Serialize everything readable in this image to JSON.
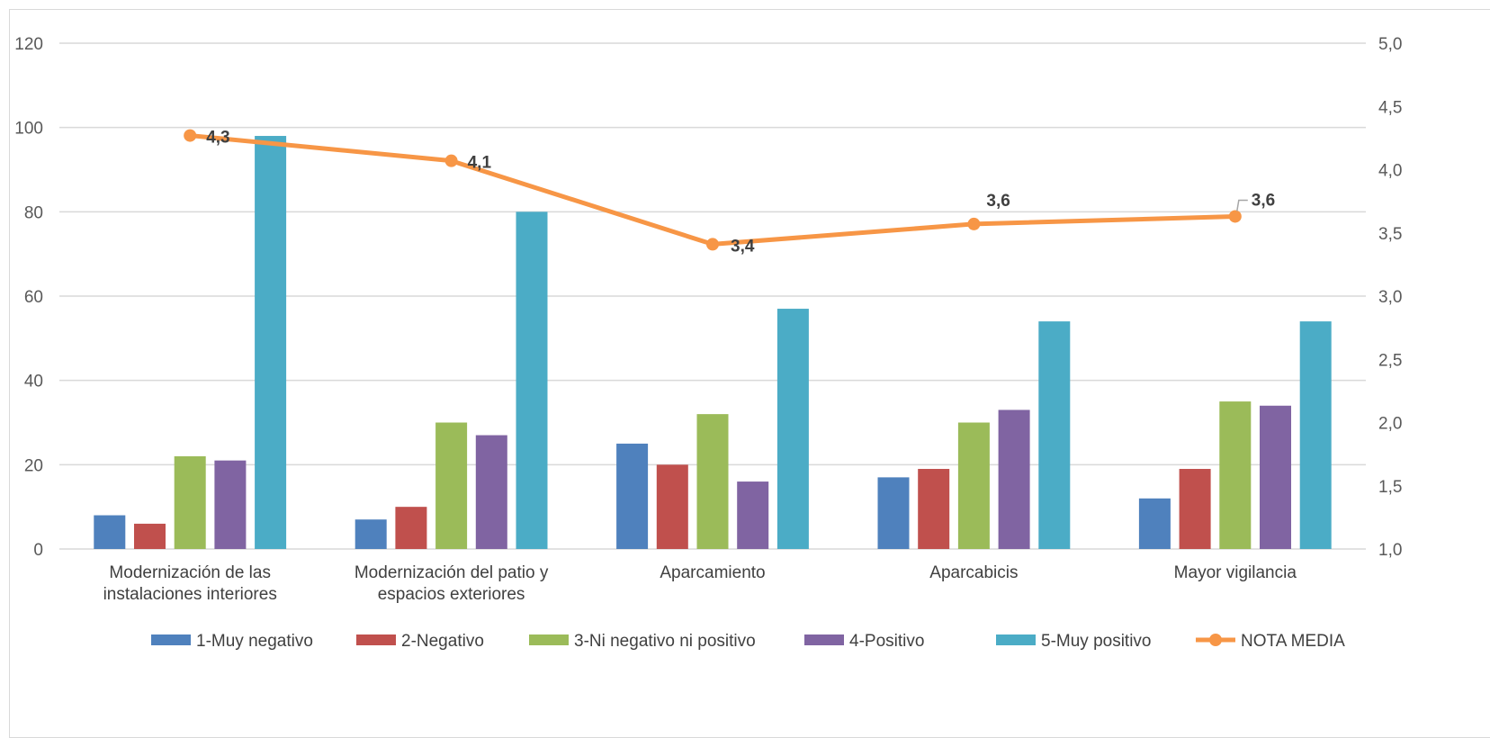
{
  "chart_data": {
    "type": "bar",
    "categories": [
      [
        "Modernización de las",
        "instalaciones interiores"
      ],
      [
        "Modernización del patio y",
        "espacios exteriores"
      ],
      [
        "Aparcamiento"
      ],
      [
        "Aparcabicis"
      ],
      [
        "Mayor vigilancia"
      ]
    ],
    "series": [
      {
        "name": "1-Muy negativo",
        "color": "#4f81bd",
        "values": [
          8,
          7,
          25,
          17,
          12
        ]
      },
      {
        "name": "2-Negativo",
        "color": "#c0504d",
        "values": [
          6,
          10,
          20,
          19,
          19
        ]
      },
      {
        "name": "3-Ni negativo ni positivo",
        "color": "#9bbb59",
        "values": [
          22,
          30,
          32,
          30,
          35
        ]
      },
      {
        "name": "4-Positivo",
        "color": "#8064a2",
        "values": [
          21,
          27,
          16,
          33,
          34
        ]
      },
      {
        "name": "5-Muy positivo",
        "color": "#4bacc6",
        "values": [
          98,
          80,
          57,
          54,
          54
        ]
      }
    ],
    "line_series": {
      "name": "NOTA MEDIA",
      "color": "#f79646",
      "axis": "secondary",
      "values": [
        4.27,
        4.07,
        3.41,
        3.57,
        3.63
      ],
      "labels": [
        "4,3",
        "4,1",
        "3,4",
        "3,6",
        "3,6"
      ]
    },
    "ylim": [
      0,
      120
    ],
    "y_ticks": [
      "0",
      "20",
      "40",
      "60",
      "80",
      "100",
      "120"
    ],
    "y2lim": [
      1.0,
      5.0
    ],
    "y2_ticks": [
      "1,0",
      "1,5",
      "2,0",
      "2,5",
      "3,0",
      "3,5",
      "4,0",
      "4,5",
      "5,0"
    ],
    "grid": true,
    "legend_position": "bottom"
  }
}
